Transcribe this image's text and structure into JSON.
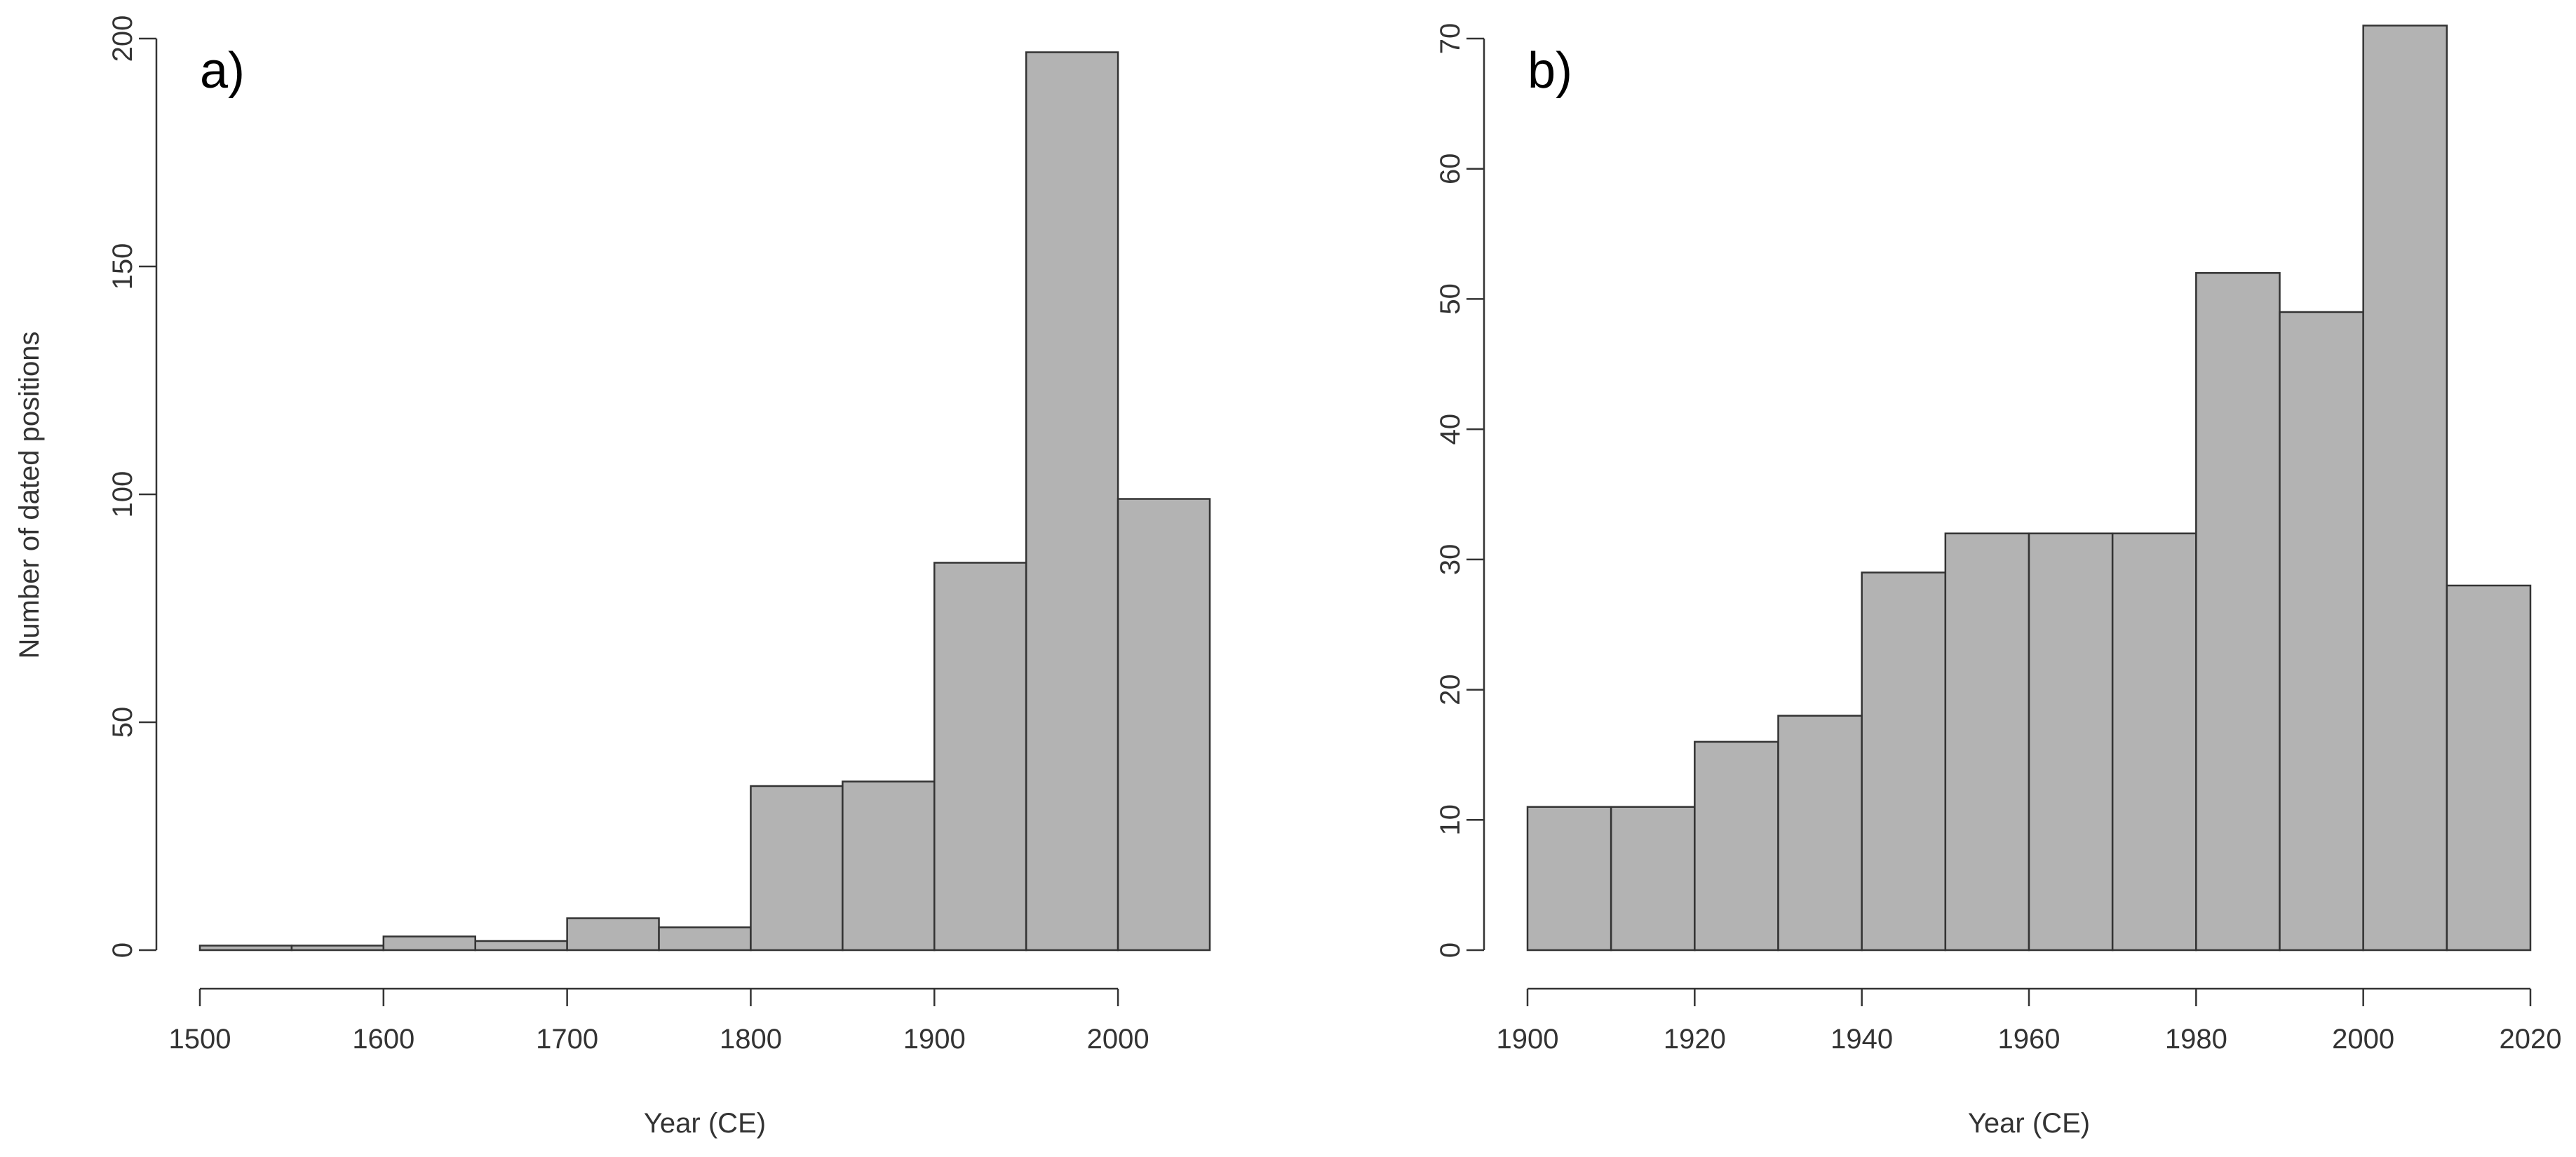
{
  "chart_data": [
    {
      "type": "bar",
      "panel_label": "a)",
      "xlabel": "Year (CE)",
      "ylabel": "Number of dated positions",
      "bin_edges": [
        1500,
        1550,
        1600,
        1650,
        1700,
        1750,
        1800,
        1850,
        1900,
        1950,
        2000,
        2050
      ],
      "values": [
        1,
        1,
        3,
        2,
        7,
        5,
        36,
        37,
        85,
        197,
        99
      ],
      "xlim": [
        1500,
        2050
      ],
      "ylim": [
        0,
        200
      ],
      "xticks": [
        "1500",
        "1600",
        "1700",
        "1800",
        "1900",
        "2000"
      ],
      "yticks": [
        "0",
        "50",
        "100",
        "150",
        "200"
      ],
      "grid": false,
      "bar_color": "#b3b3b3"
    },
    {
      "type": "bar",
      "panel_label": "b)",
      "xlabel": "Year (CE)",
      "ylabel": "",
      "bin_edges": [
        1900,
        1910,
        1920,
        1930,
        1940,
        1950,
        1960,
        1970,
        1980,
        1990,
        2000,
        2010,
        2020
      ],
      "values": [
        11,
        11,
        16,
        18,
        29,
        32,
        32,
        32,
        52,
        49,
        71,
        28
      ],
      "xlim": [
        1900,
        2020
      ],
      "ylim": [
        0,
        70
      ],
      "xticks": [
        "1900",
        "1920",
        "1940",
        "1960",
        "1980",
        "2000",
        "2020"
      ],
      "yticks": [
        "0",
        "10",
        "20",
        "30",
        "40",
        "50",
        "60",
        "70"
      ],
      "grid": false,
      "bar_color": "#b3b3b3"
    }
  ]
}
